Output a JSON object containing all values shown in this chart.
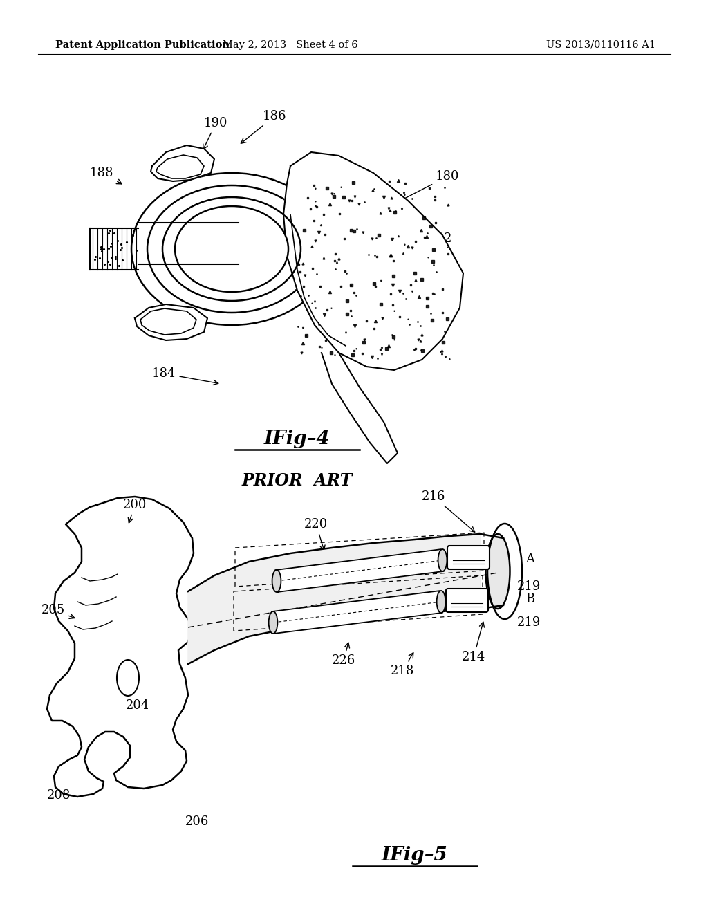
{
  "background_color": "#ffffff",
  "header": {
    "left": "Patent Application Publication",
    "center": "May 2, 2013   Sheet 4 of 6",
    "right": "US 2013/0110116 A1",
    "fontsize": 10.5
  },
  "fig4_label": "IFig-4",
  "fig4_sublabel": "PRIOR  ART",
  "fig5_label": "IFig-5"
}
